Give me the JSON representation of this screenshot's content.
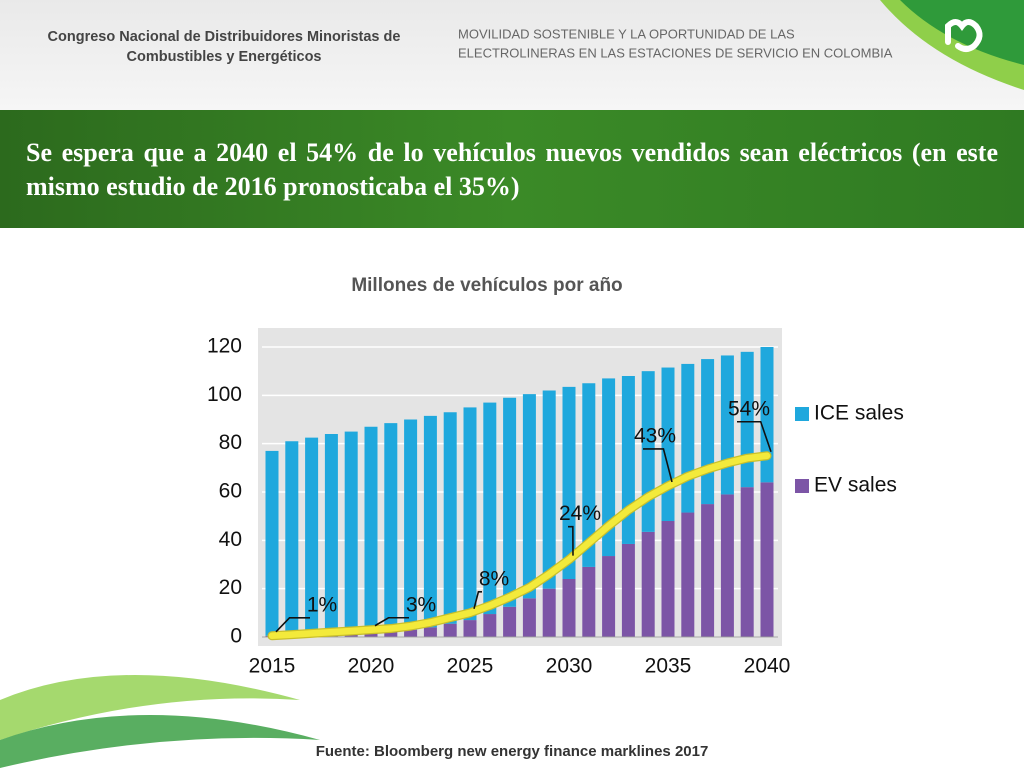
{
  "header": {
    "left_lines": [
      "Congreso Nacional de Distribuidores Minoristas de",
      "Combustibles y Energéticos"
    ],
    "right_lines": [
      "MOVILIDAD SOSTENIBLE Y LA OPORTUNIDAD DE LAS",
      "ELECTROLINERAS EN LAS ESTACIONES DE SERVICIO EN COLOMBIA"
    ]
  },
  "banner": {
    "title": "Se espera que a 2040 el 54% de lo vehículos nuevos vendidos sean eléctricos (en este mismo estudio de 2016 pronosticaba el 35%)"
  },
  "footer": {
    "source": "Fuente: Bloomberg new energy finance marklines 2017"
  },
  "chart_data": {
    "type": "bar",
    "stacked": true,
    "title": "Millones de vehículos por año",
    "categories": [
      "2015",
      null,
      null,
      null,
      null,
      "2020",
      null,
      null,
      null,
      null,
      "2025",
      null,
      null,
      null,
      null,
      "2030",
      null,
      null,
      null,
      null,
      "2035",
      null,
      null,
      null,
      null,
      "2040"
    ],
    "series": [
      {
        "name": "ICE sales",
        "color": "#1fa8dd",
        "values": [
          76.5,
          80.3,
          81.5,
          82.7,
          83.3,
          85,
          86,
          87,
          87.5,
          87.5,
          88,
          87.5,
          86.5,
          84.5,
          82,
          79.5,
          76,
          73.5,
          69.5,
          66.5,
          63.5,
          61.5,
          60,
          57.5,
          56,
          56
        ]
      },
      {
        "name": "EV sales",
        "color": "#7c55a6",
        "values": [
          0.5,
          0.7,
          1,
          1.3,
          1.7,
          2,
          2.5,
          3,
          4,
          5.5,
          7,
          9.5,
          12.5,
          16,
          20,
          24,
          29,
          33.5,
          38.5,
          43.5,
          48,
          51.5,
          55,
          59,
          62,
          64
        ]
      }
    ],
    "trend": {
      "color": "#f3ea3b",
      "values": [
        0.5,
        1,
        1.5,
        2,
        2.5,
        3,
        3.5,
        4.5,
        6,
        8,
        10,
        13,
        16.5,
        20.5,
        26,
        32,
        39,
        46,
        52.5,
        58,
        62.5,
        66.5,
        69.5,
        72,
        74,
        75
      ]
    },
    "annotations": [
      {
        "text": "1%",
        "x": "2015"
      },
      {
        "text": "3%",
        "x": "2020"
      },
      {
        "text": "8%",
        "x": "2025"
      },
      {
        "text": "24%",
        "x": "2030"
      },
      {
        "text": "43%",
        "x": "2035"
      },
      {
        "text": "54%",
        "x": "2040"
      }
    ],
    "ylim": [
      0,
      120
    ],
    "yticks": [
      0,
      20,
      40,
      60,
      80,
      100,
      120
    ],
    "grid": true,
    "legend": "right"
  }
}
